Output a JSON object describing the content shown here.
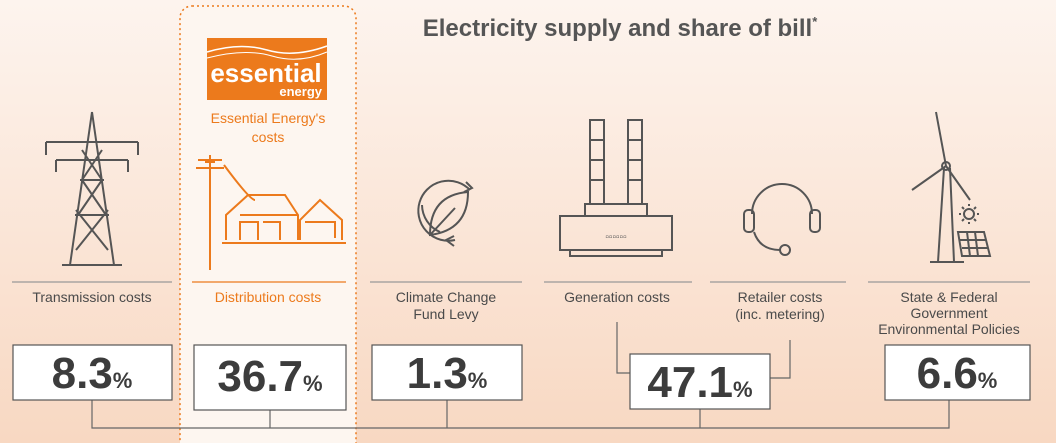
{
  "title": "Electricity supply and share of bill",
  "title_mark": "*",
  "logo": {
    "name": "essential",
    "sub": "energy"
  },
  "highlight_label": [
    "Essential Energy's",
    "costs"
  ],
  "unit": "%",
  "items": [
    {
      "label": [
        "Transmission costs"
      ],
      "value": 8.3
    },
    {
      "label": [
        "Distribution costs"
      ],
      "value": 36.7
    },
    {
      "label": [
        "Climate Change",
        "Fund Levy"
      ],
      "value": 1.3
    },
    {
      "label": [
        "Generation costs"
      ]
    },
    {
      "label": [
        "Retailer costs",
        "(inc. metering)"
      ]
    },
    {
      "label": [
        "State & Federal",
        "Government",
        "Environmental Policies"
      ],
      "value": 6.6
    }
  ],
  "combined_value": 47.1
}
